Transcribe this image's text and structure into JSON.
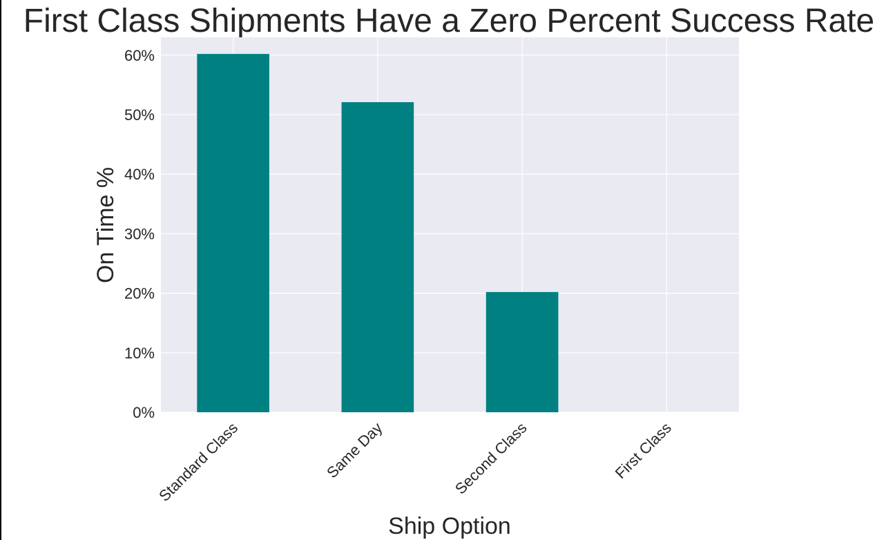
{
  "chart_data": {
    "type": "bar",
    "title": "First Class Shipments Have a Zero Percent Success Rate",
    "xlabel": "Ship Option",
    "ylabel": "On Time %",
    "categories": [
      "Standard Class",
      "Same Day",
      "Second Class",
      "First Class"
    ],
    "values": [
      60.2,
      52.1,
      20.2,
      0
    ],
    "ylim": [
      0,
      63
    ],
    "yticks": [
      0,
      10,
      20,
      30,
      40,
      50,
      60
    ],
    "ytick_labels": [
      "0%",
      "10%",
      "20%",
      "30%",
      "40%",
      "50%",
      "60%"
    ],
    "grid": true,
    "legend": "none",
    "colors": {
      "bar": "#008080",
      "plot_background": "#eaeaf2",
      "grid": "#ffffff",
      "text": "#262626"
    }
  }
}
